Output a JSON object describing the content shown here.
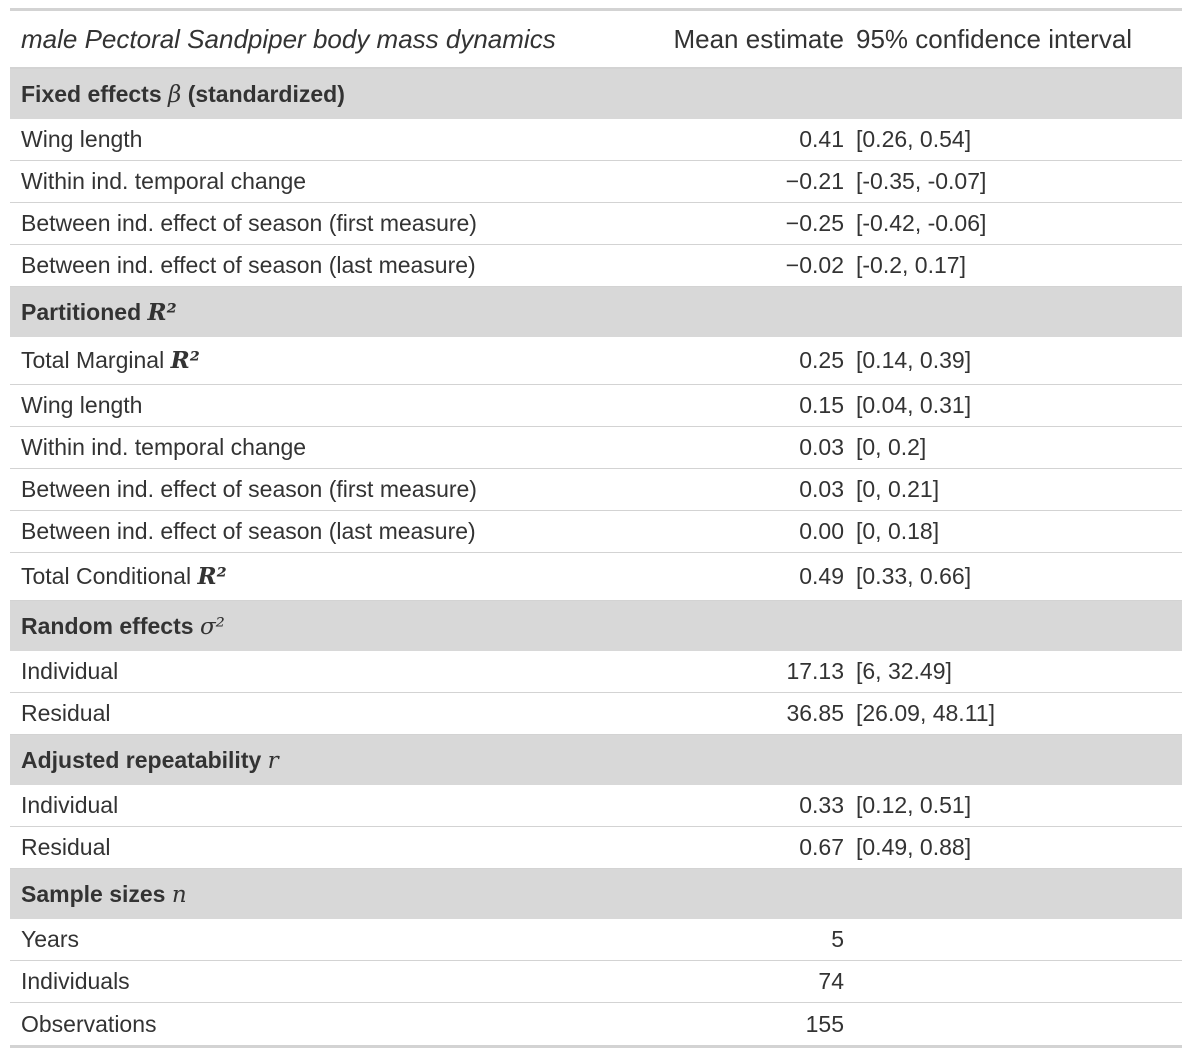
{
  "header": {
    "title": "male Pectoral Sandpiper body mass dynamics",
    "col_mean": "Mean estimate",
    "col_ci": "95% confidence interval"
  },
  "groups": {
    "fixed": {
      "label": "Fixed effects",
      "symbol": "β",
      "suffix": "(standardized)"
    },
    "r2": {
      "label": "Partitioned",
      "symbol": "R²"
    },
    "random": {
      "label": "Random effects",
      "symbol": "σ²"
    },
    "repeat": {
      "label": "Adjusted repeatability",
      "symbol": "r"
    },
    "samples": {
      "label": "Sample sizes",
      "symbol": "n"
    }
  },
  "rows": {
    "fixed": [
      {
        "label": "Wing length",
        "mean": "0.41",
        "ci": "[0.26, 0.54]"
      },
      {
        "label": "Within ind. temporal change",
        "mean": "−0.21",
        "ci": "[-0.35, -0.07]"
      },
      {
        "label": "Between ind. effect of season (first measure)",
        "mean": "−0.25",
        "ci": "[-0.42, -0.06]"
      },
      {
        "label": "Between ind. effect of season (last measure)",
        "mean": "−0.02",
        "ci": "[-0.2, 0.17]"
      }
    ],
    "r2_total_marginal": {
      "label": "Total Marginal",
      "symbol": "R²",
      "mean": "0.25",
      "ci": "[0.14, 0.39]"
    },
    "r2": [
      {
        "label": "Wing length",
        "mean": "0.15",
        "ci": "[0.04, 0.31]"
      },
      {
        "label": "Within ind. temporal change",
        "mean": "0.03",
        "ci": "[0, 0.2]"
      },
      {
        "label": "Between ind. effect of season (first measure)",
        "mean": "0.03",
        "ci": "[0, 0.21]"
      },
      {
        "label": "Between ind. effect of season (last measure)",
        "mean": "0.00",
        "ci": "[0, 0.18]"
      }
    ],
    "r2_total_conditional": {
      "label": "Total Conditional",
      "symbol": "R²",
      "mean": "0.49",
      "ci": "[0.33, 0.66]"
    },
    "random": [
      {
        "label": "Individual",
        "mean": "17.13",
        "ci": "[6, 32.49]"
      },
      {
        "label": "Residual",
        "mean": "36.85",
        "ci": "[26.09, 48.11]"
      }
    ],
    "repeat": [
      {
        "label": "Individual",
        "mean": "0.33",
        "ci": "[0.12, 0.51]"
      },
      {
        "label": "Residual",
        "mean": "0.67",
        "ci": "[0.49, 0.88]"
      }
    ],
    "samples": [
      {
        "label": "Years",
        "mean": "5",
        "ci": ""
      },
      {
        "label": "Individuals",
        "mean": "74",
        "ci": ""
      },
      {
        "label": "Observations",
        "mean": "155",
        "ci": ""
      }
    ]
  }
}
